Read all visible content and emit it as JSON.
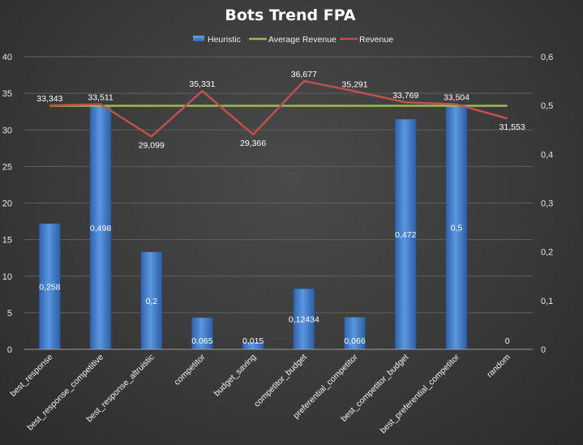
{
  "chart_data": {
    "type": "bar",
    "title": "Bots Trend FPA",
    "categories": [
      "best_response",
      "best_response_competitive",
      "best_response_altruistic",
      "competitor",
      "budget_saving",
      "competitor_budget",
      "preferential_competitor",
      "best_competitor_budget",
      "best_preferential_competitor",
      "random"
    ],
    "primary_axis": {
      "min": 0,
      "max": 40,
      "ticks": [
        "0",
        "5",
        "10",
        "15",
        "20",
        "25",
        "30",
        "35",
        "40"
      ]
    },
    "secondary_axis": {
      "min": 0,
      "max": 0.6,
      "ticks": [
        "0",
        "0,1",
        "0,2",
        "0,3",
        "0,4",
        "0,5",
        "0,6"
      ]
    },
    "legend_position": "top",
    "grid": true,
    "series": [
      {
        "name": "Heuristic",
        "type": "bar",
        "axis": "secondary",
        "color": "#4a86d4",
        "values": [
          0.258,
          0.498,
          0.2,
          0.065,
          0.015,
          0.12434,
          0.066,
          0.472,
          0.5,
          0
        ],
        "labels": [
          "0,258",
          "0,498",
          "0,2",
          "0,065",
          "0,015",
          "0,12434",
          "0,066",
          "0,472",
          "0,5",
          "0"
        ]
      },
      {
        "name": "Average Revenue",
        "type": "line",
        "axis": "primary",
        "color": "#9bbb59",
        "values": [
          33.3,
          33.3,
          33.3,
          33.3,
          33.3,
          33.3,
          33.3,
          33.3,
          33.3,
          33.3
        ]
      },
      {
        "name": "Revenue",
        "type": "line",
        "axis": "primary",
        "color": "#c0504d",
        "values": [
          33.343,
          33.511,
          29.099,
          35.331,
          29.366,
          36.677,
          35.291,
          33.769,
          33.504,
          31.553
        ],
        "labels": [
          "33,343",
          "33,511",
          "29,099",
          "35,331",
          "29,366",
          "36,677",
          "35,291",
          "33,769",
          "33,504",
          "31,553"
        ]
      }
    ]
  }
}
